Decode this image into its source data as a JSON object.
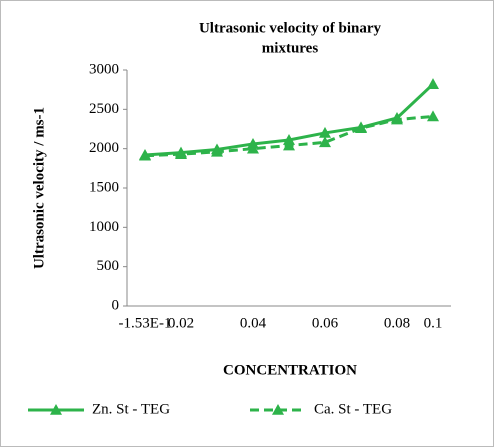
{
  "chart_data": {
    "type": "line",
    "title": [
      "Ultrasonic velocity of binary",
      "mixtures"
    ],
    "x_label": "CONCENTRATION",
    "y_label": "Ultrasonic velocity / ms-1",
    "categories": [
      "-1.53E-1",
      "0.02",
      null,
      "0.04",
      null,
      "0.06",
      null,
      "0.08",
      "0.1"
    ],
    "series": [
      {
        "name": "Zn. St - TEG",
        "color": "#2db34a",
        "dash": false,
        "values": [
          1920,
          1950,
          1990,
          2060,
          2110,
          2200,
          2270,
          2390,
          2820
        ]
      },
      {
        "name": "Ca. St - TEG",
        "color": "#2db34a",
        "dash": true,
        "values": [
          1910,
          1930,
          1960,
          2000,
          2040,
          2080,
          2260,
          2370,
          2410
        ]
      }
    ],
    "ylim": [
      0,
      3000
    ],
    "yticks": [
      0,
      500,
      1000,
      1500,
      2000,
      2500,
      3000
    ],
    "grid": false
  }
}
